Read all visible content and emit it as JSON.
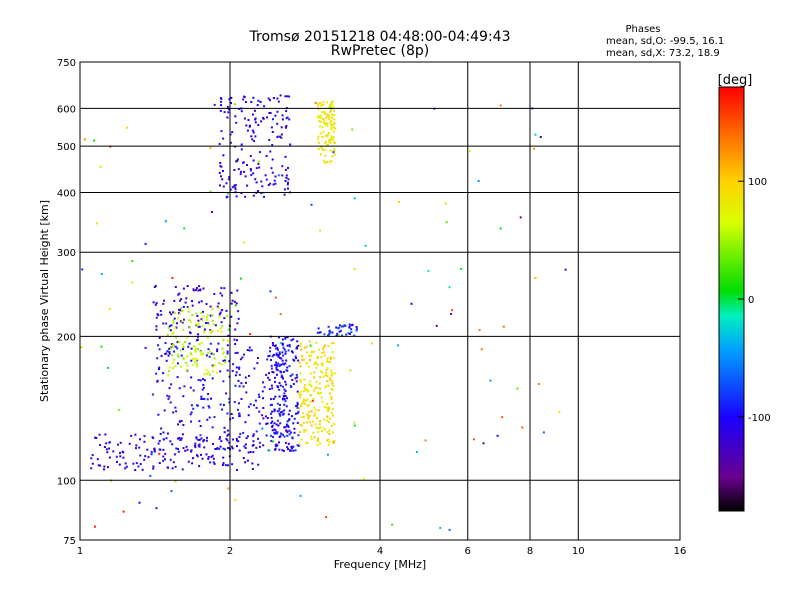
{
  "chart_data": {
    "type": "scatter",
    "title": "Tromsø 20151218 04:48:00-04:49:43",
    "subtitle": "RwPretec (8p)",
    "xlabel": "Frequency [MHz]",
    "ylabel": "Stationary phase Virtual Height [km]",
    "x_scale": "log",
    "y_scale": "log",
    "xlim": [
      1,
      16
    ],
    "ylim": [
      75,
      750
    ],
    "x_ticks": [
      1,
      2,
      4,
      6,
      8,
      10,
      16
    ],
    "y_ticks": [
      75,
      100,
      200,
      300,
      400,
      500,
      600,
      750
    ],
    "x_tick_labels": [
      "1",
      "2",
      "4",
      "6",
      "8",
      "10",
      "16"
    ],
    "y_tick_labels": [
      "75",
      "100",
      "200",
      "300",
      "400",
      "500",
      "600",
      "750"
    ],
    "grid": true,
    "stats": {
      "heading": "Phases",
      "line1": "mean, sd,O: -99.5, 16.1",
      "line2": "mean, sd,X:  73.2, 18.9"
    },
    "colorbar": {
      "label": "[deg]",
      "range": [
        -180,
        180
      ],
      "ticks": [
        100,
        0,
        -100
      ],
      "tick_labels": [
        "100",
        "0",
        "-100"
      ]
    },
    "point_clusters": [
      {
        "region": "O-trace low E/F",
        "x_range": [
          1.05,
          2.3
        ],
        "y_range": [
          105,
          125
        ],
        "phase": -110,
        "count": 160
      },
      {
        "region": "O-trace F1 rise",
        "x_range": [
          1.4,
          2.6
        ],
        "y_range": [
          115,
          190
        ],
        "phase": -105,
        "count": 260
      },
      {
        "region": "O-trace F1 upper",
        "x_range": [
          1.4,
          2.1
        ],
        "y_range": [
          190,
          255
        ],
        "phase": -110,
        "count": 120
      },
      {
        "region": "O-trace F2 cusp",
        "x_range": [
          2.4,
          2.75
        ],
        "y_range": [
          115,
          200
        ],
        "phase": -100,
        "count": 200
      },
      {
        "region": "O-trace F2 upper",
        "x_range": [
          1.9,
          2.65
        ],
        "y_range": [
          390,
          640
        ],
        "phase": -110,
        "count": 180
      },
      {
        "region": "X-trace F1",
        "x_range": [
          1.5,
          2.0
        ],
        "y_range": [
          165,
          230
        ],
        "phase": 60,
        "count": 120
      },
      {
        "region": "X-trace F2 cusp",
        "x_range": [
          2.75,
          3.25
        ],
        "y_range": [
          118,
          195
        ],
        "phase": 90,
        "count": 220
      },
      {
        "region": "X-trace F2 upper",
        "x_range": [
          3.0,
          3.25
        ],
        "y_range": [
          460,
          620
        ],
        "phase": 85,
        "count": 110
      },
      {
        "region": "Ledge near 200 km",
        "x_range": [
          3.0,
          3.6
        ],
        "y_range": [
          200,
          212
        ],
        "phase": -90,
        "count": 40
      },
      {
        "region": "Scattered noise",
        "x_range": [
          1.0,
          9.5
        ],
        "y_range": [
          78,
          640
        ],
        "phase": "mixed",
        "count": 120
      }
    ]
  }
}
